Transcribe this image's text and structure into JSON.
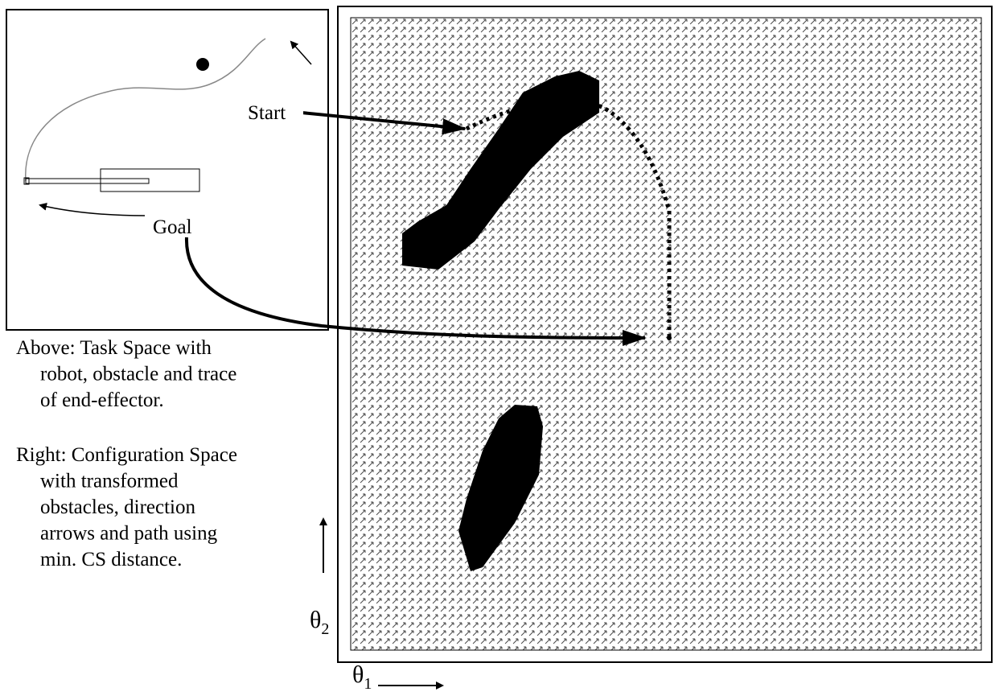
{
  "task_space": {
    "labels": {
      "start": "Start",
      "goal": "Goal"
    }
  },
  "captions": [
    {
      "lines": [
        "Above: Task Space with",
        "robot, obstacle and trace",
        "of end-effector."
      ]
    },
    {
      "lines": [
        "Right: Configuration Space",
        "with transformed",
        "obstacles, direction",
        "arrows and path using",
        "min. CS distance."
      ]
    }
  ],
  "axes": {
    "x": {
      "symbol": "θ",
      "subscript": "1"
    },
    "y": {
      "symbol": "θ",
      "subscript": "2"
    }
  }
}
